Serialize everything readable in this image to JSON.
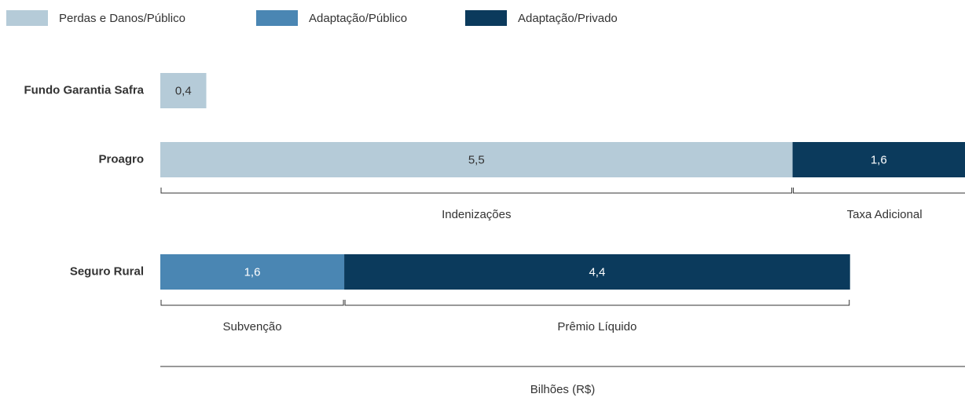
{
  "chart_data": {
    "type": "stacked-barh",
    "categories": [
      "Fundo Garantia Safra",
      "Proagro",
      "Seguro Rural"
    ],
    "series": [
      {
        "name": "Perdas e Danos/Público",
        "color": "#b5cbd8",
        "values": [
          0.4,
          5.5,
          null
        ],
        "value_labels": [
          "0,4",
          "5,5",
          null
        ],
        "segment_labels": [
          null,
          "Indenizações",
          null
        ]
      },
      {
        "name": "Adaptação/Público",
        "color": "#4a86b3",
        "values": [
          null,
          null,
          1.6
        ],
        "value_labels": [
          null,
          null,
          "1,6"
        ],
        "segment_labels": [
          null,
          null,
          "Subvenção"
        ]
      },
      {
        "name": "Adaptação/Privado",
        "color": "#0b3a5c",
        "values": [
          null,
          1.6,
          4.4
        ],
        "value_labels": [
          null,
          "1,6",
          "4,4"
        ],
        "segment_labels": [
          null,
          "Taxa Adicional",
          "Prêmio Líquido"
        ]
      }
    ],
    "xlabel": "Bilhões (R$)",
    "xlim": [
      0,
      7
    ],
    "legend": "top"
  }
}
